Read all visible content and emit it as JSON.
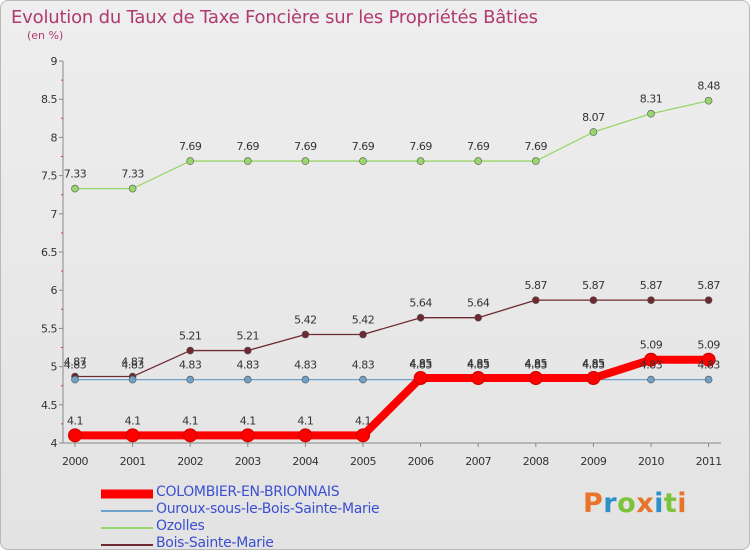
{
  "header": {
    "title": "Evolution du Taux de Taxe Foncière sur les Propriétés Bâties",
    "subtitle": "(en %)"
  },
  "logo": {
    "text": "Proxiti",
    "colors": [
      "#e8742a",
      "#2f8fc9",
      "#7cc33b",
      "#e8742a",
      "#2f8fc9",
      "#7cc33b",
      "#e8742a"
    ]
  },
  "chart_data": {
    "type": "line",
    "title": "Evolution du Taux de Taxe Foncière sur les Propriétés Bâties",
    "subtitle": "(en %)",
    "xlabel": "",
    "ylabel": "",
    "categories": [
      "2000",
      "2001",
      "2002",
      "2003",
      "2004",
      "2005",
      "2006",
      "2007",
      "2008",
      "2009",
      "2010",
      "2011"
    ],
    "ylim": [
      4,
      9
    ],
    "yticks": [
      "4",
      "4.5",
      "5",
      "5.5",
      "6",
      "6.5",
      "7",
      "7.5",
      "8",
      "8.5",
      "9"
    ],
    "grid": false,
    "legend_position": "bottom-left",
    "series": [
      {
        "name": "COLOMBIER-EN-BRIONNAIS",
        "color": "#ff0000",
        "emphasis": "thick",
        "values": [
          4.1,
          4.1,
          4.1,
          4.1,
          4.1,
          4.1,
          4.85,
          4.85,
          4.85,
          4.85,
          5.09,
          5.09
        ],
        "labels": [
          "4.1",
          "4.1",
          "4.1",
          "4.1",
          "4.1",
          "4.1",
          "4.85",
          "4.85",
          "4.85",
          "4.85",
          "5.09",
          "5.09"
        ]
      },
      {
        "name": "Ouroux-sous-le-Bois-Sainte-Marie",
        "color": "#6fa0c8",
        "values": [
          4.83,
          4.83,
          4.83,
          4.83,
          4.83,
          4.83,
          4.83,
          4.83,
          4.83,
          4.83,
          4.83,
          4.83
        ],
        "labels": [
          "4.83",
          "4.83",
          "4.83",
          "4.83",
          "4.83",
          "4.83",
          "4.83",
          "4.83",
          "4.83",
          "4.83",
          "4.83",
          "4.83"
        ]
      },
      {
        "name": "Ozolles",
        "color": "#99d66b",
        "values": [
          7.33,
          7.33,
          7.69,
          7.69,
          7.69,
          7.69,
          7.69,
          7.69,
          7.69,
          8.07,
          8.31,
          8.48
        ],
        "labels": [
          "7.33",
          "7.33",
          "7.69",
          "7.69",
          "7.69",
          "7.69",
          "7.69",
          "7.69",
          "7.69",
          "8.07",
          "8.31",
          "8.48"
        ]
      },
      {
        "name": "Bois-Sainte-Marie",
        "color": "#6e2a30",
        "values": [
          4.87,
          4.87,
          5.21,
          5.21,
          5.42,
          5.42,
          5.64,
          5.64,
          5.87,
          5.87,
          5.87,
          5.87
        ],
        "labels": [
          "4.87",
          "4.87",
          "5.21",
          "5.21",
          "5.42",
          "5.42",
          "5.64",
          "5.64",
          "5.87",
          "5.87",
          "5.87",
          "5.87"
        ]
      }
    ]
  }
}
